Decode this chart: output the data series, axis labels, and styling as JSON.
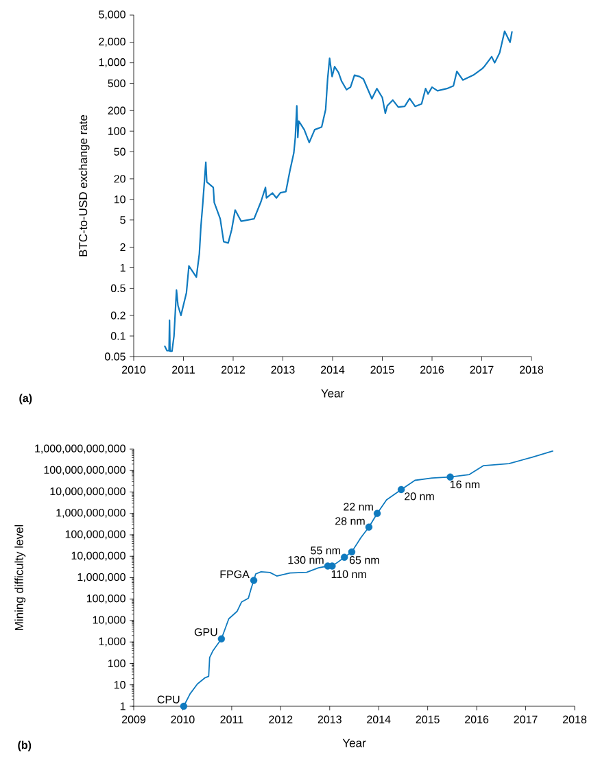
{
  "chart_data": [
    {
      "type": "line",
      "xlabel": "Year",
      "ylabel": "BTC-to-USD exchange rate",
      "log": "y",
      "xlim": [
        2010,
        2018
      ],
      "xticks": [
        2010,
        2011,
        2012,
        2013,
        2014,
        2015,
        2016,
        2017,
        2018
      ],
      "ylim": [
        0.05,
        5000
      ],
      "yticks": [
        0.05,
        0.1,
        0.2,
        0.5,
        1,
        2,
        5,
        10,
        20,
        50,
        100,
        200,
        500,
        {
          "value": 1000,
          "label": "1,000"
        },
        {
          "value": 2000,
          "label": "2,000"
        },
        {
          "value": 5000,
          "label": "5,000"
        }
      ],
      "annotations": [
        "(a)"
      ],
      "series": [
        {
          "color": "#0f7abf",
          "x": [
            2010.62,
            2010.67,
            2010.71,
            2010.72,
            2010.73,
            2010.77,
            2010.81,
            2010.86,
            2010.89,
            2010.95,
            2011.06,
            2011.11,
            2011.26,
            2011.32,
            2011.35,
            2011.39,
            2011.45,
            2011.47,
            2011.6,
            2011.62,
            2011.74,
            2011.81,
            2011.9,
            2011.97,
            2012.04,
            2012.16,
            2012.42,
            2012.56,
            2012.65,
            2012.67,
            2012.79,
            2012.87,
            2012.95,
            2013.06,
            2013.14,
            2013.22,
            2013.25,
            2013.28,
            2013.3,
            2013.32,
            2013.43,
            2013.53,
            2013.64,
            2013.78,
            2013.86,
            2013.9,
            2013.94,
            2013.99,
            2014.04,
            2014.12,
            2014.18,
            2014.28,
            2014.36,
            2014.44,
            2014.54,
            2014.62,
            2014.79,
            2014.89,
            2015.0,
            2015.06,
            2015.1,
            2015.21,
            2015.32,
            2015.45,
            2015.55,
            2015.66,
            2015.79,
            2015.87,
            2015.92,
            2016.0,
            2016.11,
            2016.3,
            2016.43,
            2016.5,
            2016.62,
            2016.83,
            2017.01,
            2017.06,
            2017.2,
            2017.26,
            2017.36,
            2017.46,
            2017.57,
            2017.61
          ],
          "values": [
            0.072,
            0.061,
            0.061,
            0.17,
            0.06,
            0.06,
            0.1,
            0.47,
            0.28,
            0.2,
            0.43,
            1.06,
            0.73,
            1.6,
            3.9,
            8.9,
            35,
            18,
            15,
            9,
            5.2,
            2.4,
            2.3,
            3.6,
            7,
            4.8,
            5.2,
            9.3,
            15,
            10.5,
            12.4,
            10.5,
            12.5,
            13,
            26,
            48,
            81,
            235,
            81,
            140,
            105,
            68,
            105,
            115,
            207,
            580,
            1170,
            630,
            880,
            720,
            540,
            405,
            440,
            660,
            630,
            580,
            298,
            420,
            310,
            183,
            235,
            285,
            225,
            230,
            300,
            230,
            250,
            420,
            350,
            440,
            390,
            420,
            460,
            750,
            560,
            660,
            820,
            900,
            1230,
            1000,
            1400,
            2900,
            2000,
            2900
          ]
        }
      ]
    },
    {
      "type": "line",
      "xlabel": "Year",
      "ylabel": "Mining difficulty level",
      "log": "y",
      "xlim": [
        2009,
        2018
      ],
      "xticks": [
        2009,
        2010,
        2011,
        2012,
        2013,
        2014,
        2015,
        2016,
        2017,
        2018
      ],
      "ylim": [
        1,
        1000000000000.0
      ],
      "yticks": [
        1,
        10,
        100,
        {
          "value": 1000,
          "label": "1,000"
        },
        {
          "value": 10000,
          "label": "10,000"
        },
        {
          "value": 100000,
          "label": "100,000"
        },
        {
          "value": 1000000,
          "label": "1,000,000"
        },
        {
          "value": 10000000,
          "label": "10,000,000"
        },
        {
          "value": 100000000,
          "label": "100,000,000"
        },
        {
          "value": 1000000000,
          "label": "1,000,000,000"
        },
        {
          "value": 10000000000,
          "label": "10,000,000,000"
        },
        {
          "value": 100000000000,
          "label": "100,000,000,000"
        },
        {
          "value": 1000000000000,
          "label": "1,000,000,000,000"
        }
      ],
      "annotations": [
        {
          "text": "CPU",
          "x": 2010.02,
          "y": 1
        },
        {
          "text": "GPU",
          "x": 2010.79,
          "y": 1400
        },
        {
          "text": "FPGA",
          "x": 2011.45,
          "y": 750000
        },
        {
          "text": "130 nm",
          "x": 2012.96,
          "y": 3500000
        },
        {
          "text": "110 nm",
          "x": 2013.05,
          "y": 3500000
        },
        {
          "text": "55 nm",
          "x": 2013.3,
          "y": 9000000
        },
        {
          "text": "65 nm",
          "x": 2013.45,
          "y": 16000000
        },
        {
          "text": "28 nm",
          "x": 2013.8,
          "y": 230000000
        },
        {
          "text": "22 nm",
          "x": 2013.97,
          "y": 1000000000
        },
        {
          "text": "20 nm",
          "x": 2014.46,
          "y": 13000000000
        },
        {
          "text": "16 nm",
          "x": 2015.46,
          "y": 50000000000
        },
        "(b)"
      ],
      "series": [
        {
          "type": "line",
          "color": "#0f7abf",
          "x": [
            2010.02,
            2010.15,
            2010.3,
            2010.45,
            2010.53,
            2010.55,
            2010.62,
            2010.79,
            2010.94,
            2011.11,
            2011.2,
            2011.34,
            2011.4,
            2011.45,
            2011.49,
            2011.6,
            2011.78,
            2011.92,
            2012.19,
            2012.53,
            2012.77,
            2012.96,
            2013.05,
            2013.17,
            2013.3,
            2013.45,
            2013.64,
            2013.8,
            2013.97,
            2014.16,
            2014.46,
            2014.74,
            2015.09,
            2015.46,
            2015.85,
            2016.14,
            2016.66,
            2017.13,
            2017.56
          ],
          "values": [
            1,
            3.8,
            11,
            21,
            25,
            190,
            400,
            1400,
            12000,
            27000,
            73000,
            110000,
            330000,
            750000,
            1500000,
            1900000,
            1750000,
            1200000,
            1650000,
            1800000,
            2900000,
            3500000,
            3500000,
            5400000,
            9000000,
            16000000,
            76000000,
            230000000,
            1000000000,
            4300000000,
            13000000000,
            35000000000,
            45000000000,
            50000000000,
            65000000000,
            170000000000,
            210000000000,
            420000000000,
            830000000000
          ]
        },
        {
          "type": "scatter",
          "marker": "circle",
          "color": "#0f7abf",
          "x": [
            2010.02,
            2010.79,
            2011.45,
            2012.96,
            2013.05,
            2013.3,
            2013.45,
            2013.8,
            2013.97,
            2014.46,
            2015.46
          ],
          "values": [
            1,
            1400,
            750000,
            3500000,
            3500000,
            9000000,
            16000000,
            230000000,
            1000000000,
            13000000000,
            50000000000
          ]
        }
      ]
    }
  ]
}
